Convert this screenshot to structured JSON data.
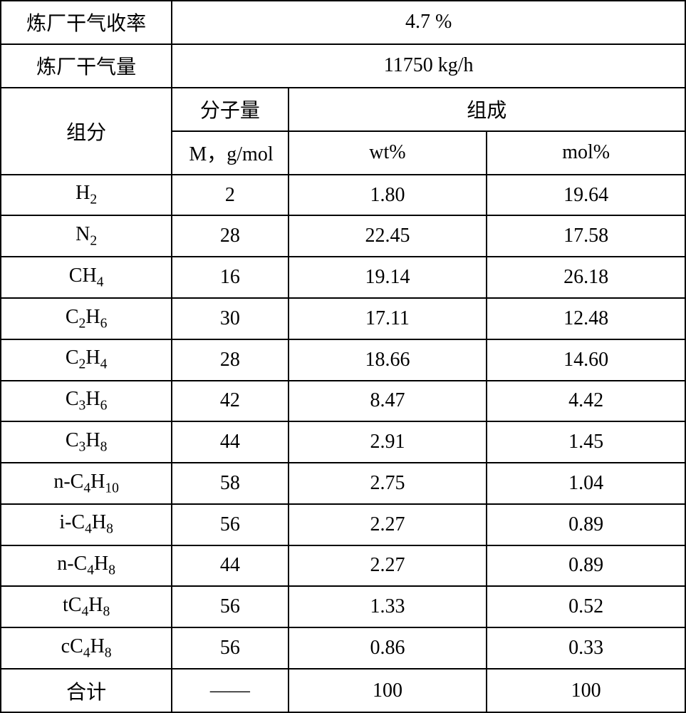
{
  "table": {
    "top_rows": [
      {
        "label": "炼厂干气收率",
        "value": "4.7 %"
      },
      {
        "label": "炼厂干气量",
        "value": "11750 kg/h"
      }
    ],
    "header": {
      "component": "组分",
      "molecular_weight": "分子量",
      "composition": "组成",
      "mw_unit": "M，g/mol",
      "wt_pct": "wt%",
      "mol_pct": "mol%"
    },
    "rows": [
      {
        "component_html": "H<sub>2</sub>",
        "mw": "2",
        "wt": "1.80",
        "mol": "19.64"
      },
      {
        "component_html": "N<sub>2</sub>",
        "mw": "28",
        "wt": "22.45",
        "mol": "17.58"
      },
      {
        "component_html": "CH<sub>4</sub>",
        "mw": "16",
        "wt": "19.14",
        "mol": "26.18"
      },
      {
        "component_html": "C<sub>2</sub>H<sub>6</sub>",
        "mw": "30",
        "wt": "17.11",
        "mol": "12.48"
      },
      {
        "component_html": "C<sub>2</sub>H<sub>4</sub>",
        "mw": "28",
        "wt": "18.66",
        "mol": "14.60"
      },
      {
        "component_html": "C<sub>3</sub>H<sub>6</sub>",
        "mw": "42",
        "wt": "8.47",
        "mol": "4.42"
      },
      {
        "component_html": "C<sub>3</sub>H<sub>8</sub>",
        "mw": "44",
        "wt": "2.91",
        "mol": "1.45"
      },
      {
        "component_html": "n-C<sub>4</sub>H<sub>10</sub>",
        "mw": "58",
        "wt": "2.75",
        "mol": "1.04"
      },
      {
        "component_html": "i-C<sub>4</sub>H<sub>8</sub>",
        "mw": "56",
        "wt": "2.27",
        "mol": "0.89"
      },
      {
        "component_html": "n-C<sub>4</sub>H<sub>8</sub>",
        "mw": "44",
        "wt": "2.27",
        "mol": "0.89"
      },
      {
        "component_html": "tC<sub>4</sub>H<sub>8</sub>",
        "mw": "56",
        "wt": "1.33",
        "mol": "0.52"
      },
      {
        "component_html": "cC<sub>4</sub>H<sub>8</sub>",
        "mw": "56",
        "wt": "0.86",
        "mol": "0.33"
      }
    ],
    "footer": {
      "label": "合计",
      "mw": "——",
      "wt": "100",
      "mol": "100"
    },
    "colors": {
      "border": "#000000",
      "background": "#ffffff",
      "text": "#000000"
    },
    "font_size": 28
  }
}
